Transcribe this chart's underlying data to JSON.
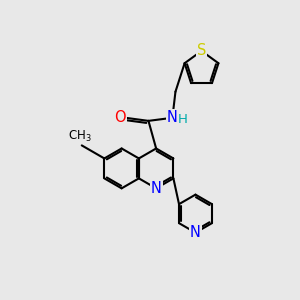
{
  "background_color": "#e8e8e8",
  "atom_colors": {
    "N": "#0000ff",
    "O": "#ff0000",
    "S": "#cccc00",
    "H": "#00aaaa",
    "C": "#000000"
  },
  "bond_color": "#000000",
  "bond_width": 1.5,
  "font_size": 10.5
}
